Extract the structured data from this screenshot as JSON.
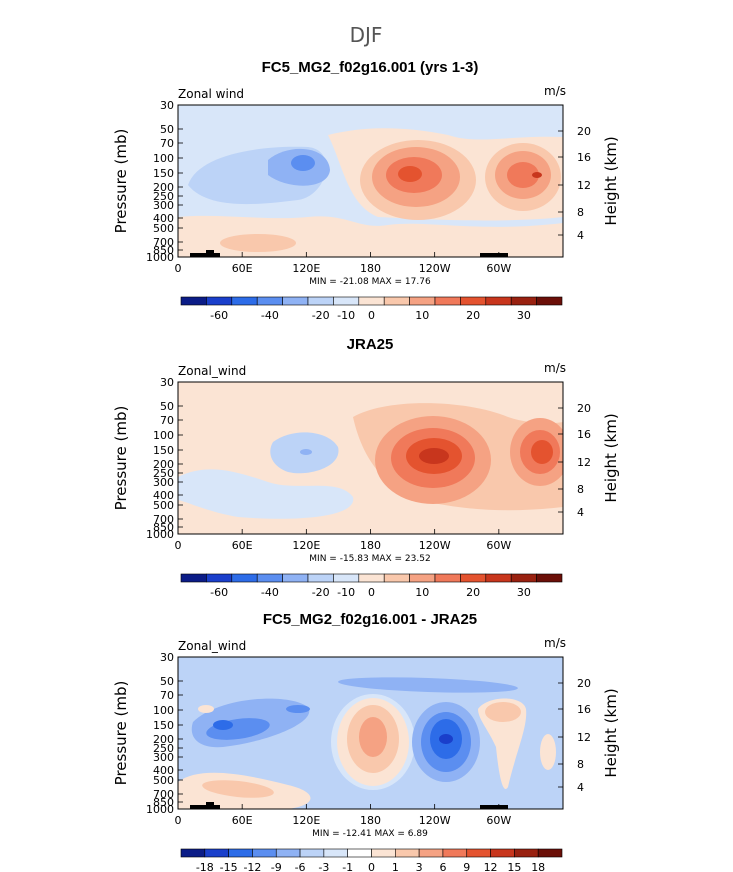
{
  "figure_title": "DJF",
  "colors": {
    "blues": [
      "#0b1c87",
      "#1a3fcb",
      "#2d6ce8",
      "#5b8ef0",
      "#8fb2f4",
      "#bcd3f7",
      "#d8e6f9"
    ],
    "reds": [
      "#fbe4d4",
      "#f9c8ac",
      "#f5a283",
      "#f0795a",
      "#e4532f",
      "#c8361d",
      "#992110",
      "#6b0f08"
    ],
    "topo": "#000000"
  },
  "chart_data": [
    {
      "type": "contour",
      "title": "FC5_MG2_f02g16.001 (yrs 1-3)",
      "left_label": "Zonal wind",
      "right_label": "m/s",
      "ylabel": "Pressure (mb)",
      "y2label": "Height (km)",
      "xticks": [
        "0",
        "60E",
        "120E",
        "180",
        "120W",
        "60W"
      ],
      "yticks": [
        "30",
        "50",
        "70",
        "100",
        "150",
        "200",
        "250",
        "300",
        "400",
        "500",
        "700",
        "850",
        "1000"
      ],
      "y2ticks": [
        "20",
        "16",
        "12",
        "8",
        "4"
      ],
      "stats": "MIN = -21.08   MAX =  17.76",
      "colorbar": {
        "labels": [
          "-60",
          "-40",
          "-20",
          "-10",
          "0",
          "10",
          "20",
          "30"
        ]
      }
    },
    {
      "type": "contour",
      "title": "JRA25",
      "left_label": "Zonal_wind",
      "right_label": "m/s",
      "ylabel": "Pressure (mb)",
      "y2label": "Height (km)",
      "xticks": [
        "0",
        "60E",
        "120E",
        "180",
        "120W",
        "60W"
      ],
      "yticks": [
        "30",
        "50",
        "70",
        "100",
        "150",
        "200",
        "250",
        "300",
        "400",
        "500",
        "700",
        "850",
        "1000"
      ],
      "y2ticks": [
        "20",
        "16",
        "12",
        "8",
        "4"
      ],
      "stats": "MIN = -15.83   MAX =  23.52",
      "colorbar": {
        "labels": [
          "-60",
          "-40",
          "-20",
          "-10",
          "0",
          "10",
          "20",
          "30"
        ]
      }
    },
    {
      "type": "contour",
      "title": "FC5_MG2_f02g16.001 - JRA25",
      "left_label": "Zonal_wind",
      "right_label": "m/s",
      "ylabel": "Pressure (mb)",
      "y2label": "Height (km)",
      "xticks": [
        "0",
        "60E",
        "120E",
        "180",
        "120W",
        "60W"
      ],
      "yticks": [
        "30",
        "50",
        "70",
        "100",
        "150",
        "200",
        "250",
        "300",
        "400",
        "500",
        "700",
        "850",
        "1000"
      ],
      "y2ticks": [
        "20",
        "16",
        "12",
        "8",
        "4"
      ],
      "stats": "MIN = -12.41   MAX =   6.89",
      "colorbar": {
        "labels": [
          "-18",
          "-15",
          "-12",
          "-9",
          "-6",
          "-3",
          "-1",
          "0",
          "1",
          "3",
          "6",
          "9",
          "12",
          "15",
          "18"
        ]
      }
    }
  ]
}
